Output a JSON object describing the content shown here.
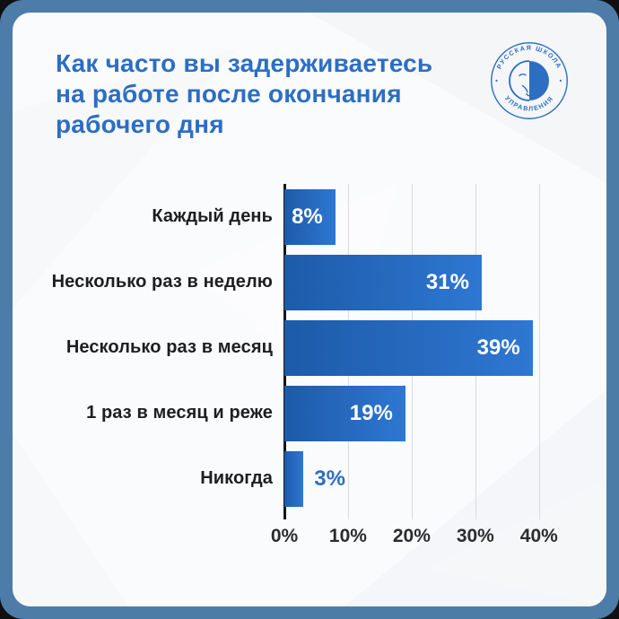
{
  "frame": {
    "border_color": "#4e7ca9",
    "card_bg": "#fafbfc",
    "accent_blue": "#2d6ec3"
  },
  "header": {
    "title_lines": [
      "Как часто вы задерживаетесь",
      "на работе после окончания",
      "рабочего дня"
    ],
    "logo": {
      "top_text": "РУССКАЯ ШКОЛА",
      "bottom_text": "УПРАВЛЕНИЯ",
      "separator": "•",
      "color": "#2d6ec3"
    }
  },
  "chart_data": {
    "type": "bar",
    "orientation": "horizontal",
    "title": "Как часто вы задерживаетесь на работе после окончания рабочего дня",
    "categories": [
      "Каждый день",
      "Несколько раз в неделю",
      "Несколько раз в месяц",
      "1 раз в месяц и реже",
      "Никогда"
    ],
    "values": [
      8,
      31,
      39,
      19,
      3
    ],
    "value_labels": [
      "8%",
      "31%",
      "39%",
      "19%",
      "3%"
    ],
    "x_ticks": [
      "0%",
      "10%",
      "20%",
      "30%",
      "40%"
    ],
    "x_tick_values": [
      0,
      10,
      20,
      30,
      40
    ],
    "xlim": [
      0,
      42
    ],
    "grid": true,
    "legend": "none",
    "bar_color_start": "#1d5ba9",
    "bar_color_end": "#2e77d2",
    "value_label_color_inside": "#ffffff",
    "value_label_color_outside": "#2d6ec3",
    "category_label_color": "#1d1e20",
    "tick_label_color": "#2b2c2e",
    "outside_label_threshold": 6
  }
}
